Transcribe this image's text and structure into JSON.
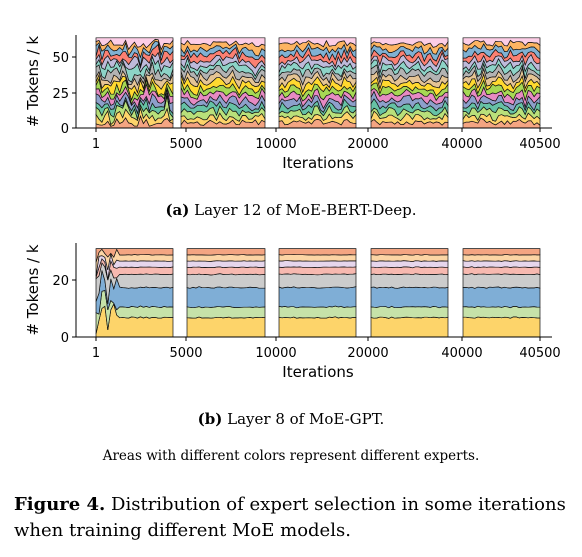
{
  "chart_data": [
    {
      "type": "area",
      "subcaption_label": "(a)",
      "subcaption_text": "Layer 12 of MoE-BERT-Deep.",
      "ylabel": "# Tokens / k",
      "xlabel": "Iterations",
      "yticks": [
        "0",
        "25",
        "50"
      ],
      "ylim": [
        0,
        64
      ],
      "xtick_labels": [
        "1",
        "5000",
        "10000",
        "20000",
        "40000",
        "40500"
      ],
      "segments": [
        "1–5000",
        "5000–10000",
        "10000–20000",
        "20000–40000",
        "40000–40500"
      ],
      "series_count": 16,
      "stacked": true,
      "colors": [
        "#f4a582",
        "#fdd46a",
        "#b9e07a",
        "#66c2a5",
        "#8da0cb",
        "#e78ac3",
        "#a6d854",
        "#ffd92f",
        "#e5c494",
        "#b3b3b3",
        "#8dd3c7",
        "#bebada",
        "#fb8072",
        "#80b1d3",
        "#fdb462",
        "#fccde5"
      ]
    },
    {
      "type": "area",
      "subcaption_label": "(b)",
      "subcaption_text": "Layer 8 of MoE-GPT.",
      "ylabel": "# Tokens / k",
      "xlabel": "Iterations",
      "yticks": [
        "0",
        "20"
      ],
      "ylim": [
        0,
        33
      ],
      "xtick_labels": [
        "1",
        "5000",
        "10000",
        "20000",
        "40000",
        "40500"
      ],
      "segments": [
        "1–5000",
        "5000–10000",
        "10000–20000",
        "20000–40000",
        "40000–40500"
      ],
      "series_count": 8,
      "stacked": true,
      "colors": [
        "#fdd46a",
        "#c6e2a9",
        "#7faed6",
        "#cccccc",
        "#f7b9b0",
        "#e6d6ec",
        "#fcd5a5",
        "#f4a582"
      ]
    }
  ],
  "note": "Areas with different colors represent different experts.",
  "figure_caption": {
    "label": "Figure 4.",
    "text": "Distribution of expert selection in some iterations when training different MoE models."
  }
}
